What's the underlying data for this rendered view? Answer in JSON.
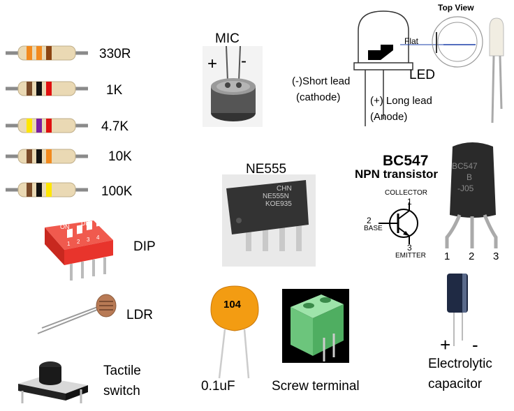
{
  "resistors": [
    {
      "label": "330R",
      "bands": [
        "#f28a1e",
        "#f28a1e",
        "#8b4513"
      ]
    },
    {
      "label": "1K",
      "bands": [
        "#7a4b2a",
        "#111111",
        "#e01010"
      ]
    },
    {
      "label": "4.7K",
      "bands": [
        "#ffe600",
        "#7a1fa2",
        "#e01010"
      ]
    },
    {
      "label": "10K",
      "bands": [
        "#7a4b2a",
        "#111111",
        "#f28a1e"
      ]
    },
    {
      "label": "100K",
      "bands": [
        "#7a4b2a",
        "#111111",
        "#ffe600"
      ]
    }
  ],
  "mic": {
    "title": "MIC",
    "plus": "+",
    "minus": "-"
  },
  "led": {
    "top_view": "Top View",
    "flat": "Flat",
    "title": "LED",
    "short_lead": "(-)Short lead",
    "cathode": "(cathode)",
    "long_lead": "(+) Long lead",
    "anode": "(Anode)"
  },
  "ne555": {
    "title": "NE555",
    "chip_line1": "CHN",
    "chip_line2": "NE555N",
    "chip_line3": "KOE935"
  },
  "bc547": {
    "title": "BC547",
    "subtitle": "NPN transistor",
    "collector": "COLLECTOR",
    "base": "BASE",
    "emitter": "EMITTER",
    "pin1": "1",
    "pin2": "2",
    "pin3": "3",
    "body_line1": "BC547",
    "body_line2": "B",
    "body_line3": "-J05",
    "leg1": "1",
    "leg2": "2",
    "leg3": "3"
  },
  "dip": {
    "label": "DIP",
    "on": "ON",
    "dip_text": "DIP",
    "nums": [
      "1",
      "2",
      "3",
      "4"
    ]
  },
  "ldr": {
    "label": "LDR"
  },
  "tactile": {
    "line1": "Tactile",
    "line2": "switch"
  },
  "ceramic": {
    "code": "104",
    "label": "0.1uF"
  },
  "screw": {
    "label": "Screw terminal"
  },
  "electrolytic": {
    "plus": "+",
    "minus": "-",
    "line1": "Electrolytic",
    "line2": "capacitor"
  },
  "colors": {
    "orange_cap": "#f39c12",
    "green_terminal": "#7fd68f",
    "dip_red": "#e8342c",
    "resistor_body": "#ead9b4"
  }
}
